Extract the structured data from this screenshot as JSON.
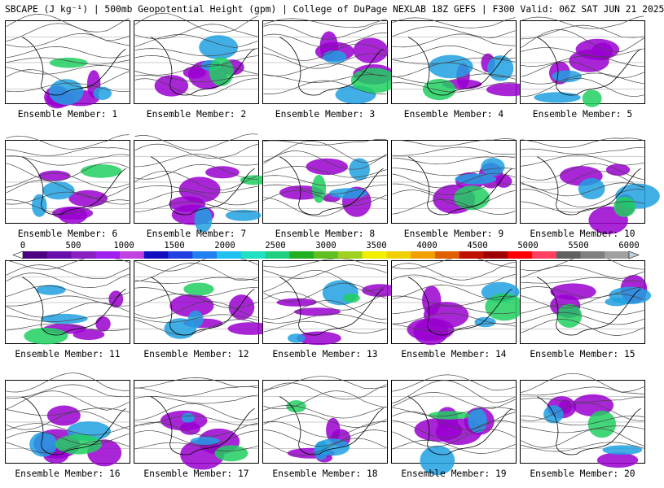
{
  "title": "SBCAPE (J kg⁻¹) | 500mb Geopotential Height (gpm) | College of DuPage NEXLAB 18Z GEFS | F300 Valid: 06Z SAT JUN 21 2025",
  "member_label_prefix": "Ensemble Member:",
  "members": [
    {
      "id": "1"
    },
    {
      "id": "2"
    },
    {
      "id": "3"
    },
    {
      "id": "4"
    },
    {
      "id": "5"
    },
    {
      "id": "6"
    },
    {
      "id": "7"
    },
    {
      "id": "8"
    },
    {
      "id": "9"
    },
    {
      "id": "10"
    },
    {
      "id": "11"
    },
    {
      "id": "12"
    },
    {
      "id": "13"
    },
    {
      "id": "14"
    },
    {
      "id": "15"
    },
    {
      "id": "16"
    },
    {
      "id": "17"
    },
    {
      "id": "18"
    },
    {
      "id": "19"
    },
    {
      "id": "20"
    }
  ],
  "colorbar": {
    "min": 0,
    "max": 6000,
    "step": 250,
    "tick_labels": [
      "0",
      "500",
      "1000",
      "1500",
      "2000",
      "2500",
      "3000",
      "3500",
      "4000",
      "4500",
      "5000",
      "5500",
      "6000"
    ],
    "colors": [
      "#ffffff",
      "#4b0082",
      "#6a0dad",
      "#8a1fc4",
      "#a020f0",
      "#c040e0",
      "#1010c0",
      "#2040e0",
      "#2080f0",
      "#20c0f0",
      "#20e0c0",
      "#20d080",
      "#20b020",
      "#60c020",
      "#a0d020",
      "#f0f000",
      "#f0d000",
      "#f0a000",
      "#e06000",
      "#c01000",
      "#a00000",
      "#ff0000",
      "#ff4060",
      "#606060",
      "#808080",
      "#a0a0a0",
      "#c0d0e0"
    ]
  },
  "palette": {
    "low_cape": "#9a00d0",
    "mid_cape": "#20a0e0",
    "high_cape": "#20d060",
    "very_high_cape": "#f0f000",
    "contour": "#444444"
  }
}
